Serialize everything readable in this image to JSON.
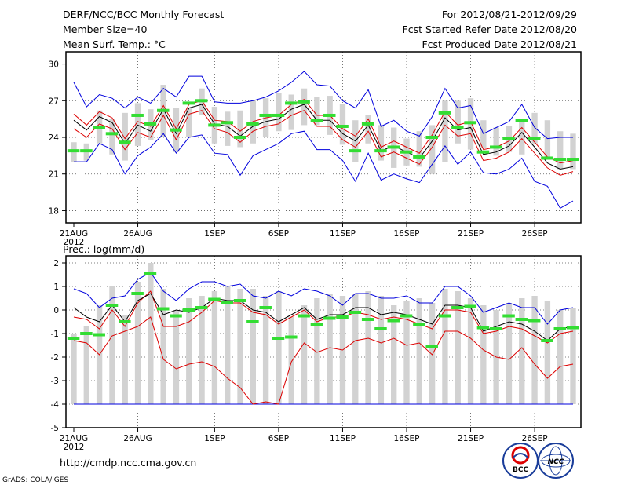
{
  "header": {
    "title": "DERF/NCC/BCC Monthly Forecast",
    "member_size": "Member Size=40",
    "variable": "Mean Surf. Temp.: °C",
    "period": "For 2012/08/21-2012/09/29",
    "refer_date": "Fcst Started Refer Date 2012/08/20",
    "produced_date": "Fcst Produced Date 2012/08/21"
  },
  "panel2_title": "Prec.: log(mm/d)",
  "footer": {
    "url": "http://cmdp.ncc.cma.gov.cn",
    "grads": "GrADS: COLA/IGES",
    "logo_left": "BCC",
    "logo_right": "NCC"
  },
  "colors": {
    "box": "#d2d2d2",
    "median": "#33dd33",
    "mean": "#000000",
    "spread": "#dd0000",
    "envelope": "#0000dd",
    "grid": "#555555"
  },
  "chart_data": [
    {
      "type": "ensemble_box",
      "title": "Mean Surf. Temp.: °C",
      "x_start": "2012-08-21",
      "n_days": 40,
      "x_ticks": [
        {
          "day": 0,
          "label": "21AUG",
          "sublabel": "2012"
        },
        {
          "day": 5,
          "label": "26AUG"
        },
        {
          "day": 11,
          "label": "1SEP"
        },
        {
          "day": 16,
          "label": "6SEP"
        },
        {
          "day": 21,
          "label": "11SEP"
        },
        {
          "day": 26,
          "label": "16SEP"
        },
        {
          "day": 31,
          "label": "21SEP"
        },
        {
          "day": 36,
          "label": "26SEP"
        }
      ],
      "ylim": [
        17,
        31
      ],
      "y_ticks": [
        18,
        21,
        24,
        27,
        30
      ],
      "box_low": [
        22.0,
        22.1,
        23.5,
        22.6,
        22.1,
        23.3,
        23.8,
        24.0,
        22.8,
        24.0,
        25.8,
        23.5,
        23.3,
        23.2,
        23.5,
        24.0,
        24.5,
        24.6,
        25.0,
        25.0,
        24.2,
        23.4,
        22.0,
        23.5,
        22.1,
        21.5,
        21.7,
        21.6,
        21.0,
        22.0,
        23.5,
        23.0,
        23.1,
        22.5,
        22.8,
        22.6,
        23.5,
        22.2,
        21.4,
        21.4
      ],
      "box_high": [
        23.6,
        23.5,
        26.2,
        25.5,
        26.0,
        26.8,
        26.3,
        28.3,
        26.4,
        26.4,
        28.0,
        26.5,
        26.1,
        26.2,
        27.0,
        27.2,
        27.6,
        27.5,
        28.0,
        27.3,
        27.4,
        26.7,
        25.4,
        25.8,
        25.0,
        24.8,
        23.9,
        24.5,
        25.0,
        27.0,
        27.0,
        27.2,
        25.4,
        24.8,
        24.9,
        25.5,
        26.0,
        25.4,
        24.5,
        24.3
      ],
      "median": [
        22.9,
        22.9,
        24.8,
        24.3,
        23.6,
        25.8,
        25.1,
        26.2,
        24.6,
        26.8,
        27.0,
        25.0,
        25.2,
        24.0,
        25.1,
        25.8,
        25.8,
        26.8,
        26.9,
        25.4,
        25.8,
        24.9,
        22.9,
        25.1,
        22.9,
        23.2,
        22.8,
        22.4,
        24.0,
        26.0,
        24.8,
        25.2,
        22.8,
        23.2,
        23.9,
        25.4,
        23.9,
        22.3,
        22.2,
        22.2
      ],
      "mean": [
        25.4,
        24.6,
        25.7,
        25.2,
        23.5,
        25.0,
        24.5,
        26.3,
        24.3,
        26.4,
        26.7,
        25.1,
        24.9,
        24.1,
        24.9,
        25.3,
        25.5,
        26.3,
        26.7,
        25.4,
        25.4,
        24.3,
        23.7,
        25.0,
        22.9,
        23.3,
        22.8,
        22.3,
        23.7,
        25.6,
        24.6,
        24.8,
        22.6,
        22.8,
        23.3,
        24.4,
        23.2,
        21.9,
        21.4,
        21.6
      ],
      "upper": [
        25.9,
        25.0,
        26.1,
        25.6,
        23.9,
        25.3,
        24.9,
        26.6,
        24.7,
        26.7,
        27.0,
        25.4,
        25.3,
        24.5,
        25.3,
        25.6,
        25.8,
        26.7,
        27.1,
        25.8,
        25.8,
        24.7,
        24.1,
        25.5,
        23.2,
        23.7,
        23.2,
        22.7,
        24.2,
        26.1,
        25.0,
        25.3,
        23.0,
        23.2,
        23.7,
        24.8,
        23.6,
        22.4,
        21.9,
        22.1
      ],
      "lower": [
        24.7,
        24.0,
        25.1,
        24.7,
        23.0,
        24.4,
        24.0,
        25.8,
        23.8,
        25.9,
        26.2,
        24.7,
        24.4,
        23.6,
        24.5,
        24.9,
        25.1,
        25.8,
        26.2,
        24.9,
        24.9,
        23.8,
        23.2,
        24.5,
        22.4,
        22.8,
        22.3,
        21.8,
        23.2,
        25.0,
        24.1,
        24.3,
        22.1,
        22.3,
        22.8,
        23.9,
        22.7,
        21.5,
        20.9,
        21.2
      ],
      "env_max": [
        28.5,
        26.5,
        27.5,
        27.2,
        26.4,
        27.3,
        26.8,
        28.0,
        27.3,
        29.0,
        29.0,
        26.9,
        26.8,
        26.8,
        27.0,
        27.3,
        27.8,
        28.5,
        29.4,
        28.3,
        28.2,
        27.0,
        26.4,
        27.9,
        24.9,
        25.4,
        24.5,
        24.1,
        25.7,
        28.0,
        26.4,
        26.6,
        24.3,
        24.8,
        25.3,
        26.7,
        24.8,
        23.9,
        24.0,
        24.0
      ],
      "env_min": [
        22.0,
        22.0,
        23.5,
        23.0,
        21.0,
        22.5,
        23.2,
        24.3,
        22.7,
        24.0,
        24.2,
        22.7,
        22.6,
        20.9,
        22.5,
        23.0,
        23.5,
        24.3,
        24.5,
        23.0,
        23.0,
        22.1,
        20.4,
        22.7,
        20.5,
        21.0,
        20.6,
        20.3,
        21.8,
        23.3,
        21.8,
        22.8,
        21.1,
        21.0,
        21.4,
        22.3,
        20.4,
        20.0,
        18.2,
        18.8
      ]
    },
    {
      "type": "ensemble_box",
      "title": "Prec.: log(mm/d)",
      "x_start": "2012-08-21",
      "n_days": 40,
      "x_ticks": [
        {
          "day": 0,
          "label": "21AUG",
          "sublabel": "2012"
        },
        {
          "day": 5,
          "label": "26AUG"
        },
        {
          "day": 11,
          "label": "1SEP"
        },
        {
          "day": 16,
          "label": "6SEP"
        },
        {
          "day": 21,
          "label": "11SEP"
        },
        {
          "day": 26,
          "label": "16SEP"
        },
        {
          "day": 31,
          "label": "21SEP"
        },
        {
          "day": 36,
          "label": "26SEP"
        }
      ],
      "ylim": [
        -5,
        2.3
      ],
      "y_ticks": [
        -5,
        -4,
        -3,
        -2,
        -1,
        0,
        1,
        2
      ],
      "box_low": [
        -4,
        -4,
        -4,
        -4,
        -4,
        -4,
        -4,
        -4,
        -4,
        -4,
        -4,
        -4,
        -4,
        -4,
        -4,
        -4,
        -4,
        -4,
        -4,
        -4,
        -4,
        -4,
        -4,
        -4,
        -4,
        -4,
        -4,
        -4,
        -4,
        -4,
        -4,
        -4,
        -4,
        -4,
        -4,
        -4,
        -4,
        -4,
        -4,
        -4
      ],
      "box_high": [
        -1.0,
        -0.7,
        0.2,
        1.0,
        -0.2,
        1.2,
        2.0,
        0.9,
        0.0,
        0.5,
        0.6,
        0.8,
        1.0,
        0.9,
        0.9,
        0.6,
        0.8,
        -0.3,
        0.2,
        0.5,
        0.7,
        0.6,
        0.7,
        0.8,
        0.6,
        0.2,
        0.4,
        0.5,
        0.3,
        0.9,
        0.8,
        0.5,
        0.2,
        0.0,
        0.3,
        0.5,
        0.6,
        0.4,
        0.0,
        0.1
      ],
      "median": [
        -1.2,
        -1.0,
        -1.05,
        0.2,
        -0.5,
        0.7,
        1.55,
        0.05,
        -0.25,
        0.0,
        0.1,
        0.45,
        0.3,
        0.4,
        -0.5,
        0.1,
        -1.2,
        -1.15,
        -0.25,
        -0.6,
        -0.35,
        -0.3,
        -0.1,
        -0.4,
        -0.8,
        -0.45,
        -0.25,
        -0.6,
        -1.55,
        -0.25,
        0.1,
        0.15,
        -0.75,
        -0.8,
        -0.25,
        -0.4,
        -0.45,
        -1.3,
        -0.8,
        -0.75
      ],
      "mean": [
        0.1,
        -0.3,
        -0.5,
        0.2,
        -0.5,
        0.4,
        0.7,
        -0.2,
        0.0,
        -0.1,
        0.1,
        0.5,
        0.4,
        0.4,
        0.0,
        -0.1,
        -0.5,
        -0.2,
        0.1,
        -0.4,
        -0.2,
        -0.2,
        0.1,
        0.1,
        -0.2,
        -0.1,
        -0.2,
        -0.4,
        -0.6,
        0.2,
        0.2,
        0.1,
        -0.9,
        -0.7,
        -0.5,
        -0.6,
        -0.9,
        -1.3,
        -0.8,
        -0.7
      ],
      "upper": [
        -0.3,
        -0.4,
        -0.8,
        0.0,
        -0.7,
        0.3,
        0.8,
        -0.7,
        -0.7,
        -0.5,
        -0.1,
        0.4,
        0.3,
        0.3,
        -0.1,
        -0.2,
        -0.6,
        -0.3,
        0.0,
        -0.5,
        -0.3,
        -0.3,
        -0.1,
        -0.2,
        -0.4,
        -0.3,
        -0.4,
        -0.6,
        -0.8,
        0.0,
        0.0,
        -0.1,
        -1.0,
        -0.9,
        -0.7,
        -0.8,
        -1.1,
        -1.4,
        -1.0,
        -0.9
      ],
      "lower": [
        -1.3,
        -1.4,
        -1.9,
        -1.1,
        -0.9,
        -0.7,
        -0.3,
        -2.1,
        -2.5,
        -2.3,
        -2.2,
        -2.4,
        -2.9,
        -3.3,
        -4.0,
        -3.9,
        -4.0,
        -2.2,
        -1.4,
        -1.8,
        -1.6,
        -1.7,
        -1.3,
        -1.2,
        -1.4,
        -1.2,
        -1.5,
        -1.4,
        -1.9,
        -0.9,
        -0.9,
        -1.2,
        -1.7,
        -2.0,
        -2.1,
        -1.6,
        -2.3,
        -2.9,
        -2.4,
        -2.3
      ],
      "env_max": [
        0.9,
        0.7,
        0.1,
        0.5,
        0.6,
        1.3,
        1.6,
        0.8,
        0.4,
        0.9,
        1.2,
        1.2,
        1.0,
        1.1,
        0.6,
        0.5,
        0.8,
        0.6,
        0.9,
        0.8,
        0.6,
        0.2,
        0.7,
        0.7,
        0.5,
        0.5,
        0.6,
        0.3,
        0.3,
        1.0,
        1.0,
        0.6,
        -0.1,
        0.1,
        0.3,
        0.1,
        0.1,
        -0.6,
        0.0,
        0.1
      ],
      "env_min": [
        -4,
        -4,
        -4,
        -4,
        -4,
        -4,
        -4,
        -4,
        -4,
        -4,
        -4,
        -4,
        -4,
        -4,
        -4,
        -4,
        -4,
        -4,
        -4,
        -4,
        -4,
        -4,
        -4,
        -4,
        -4,
        -4,
        -4,
        -4,
        -4,
        -4,
        -4,
        -4,
        -4,
        -4,
        -4,
        -4,
        -4,
        -4,
        -4,
        -4
      ]
    }
  ]
}
